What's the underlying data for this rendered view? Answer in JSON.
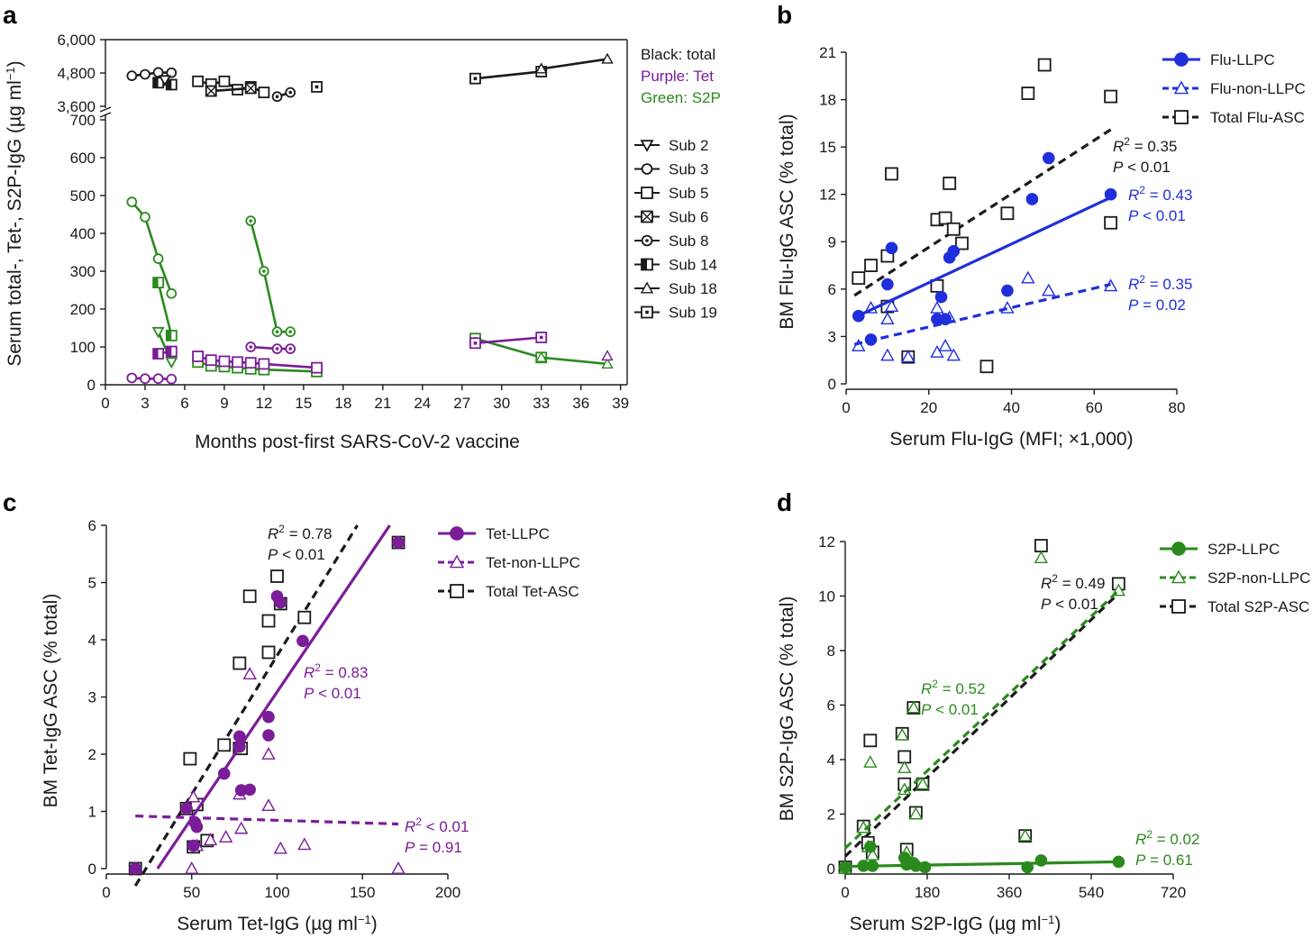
{
  "chart_data": [
    {
      "panel": "a",
      "type": "line",
      "xlabel": "Months post-first SARS-CoV-2 vaccine",
      "ylabel": "Serum total-, Tet-, S2P-IgG (µg ml",
      "ylabel_sup": "−1",
      "ylabel_tail": ")",
      "xlim": [
        0,
        39.5
      ],
      "xticks": [
        0,
        3,
        6,
        9,
        12,
        15,
        18,
        21,
        24,
        27,
        30,
        33,
        36,
        39
      ],
      "ylim_lower": [
        0,
        700
      ],
      "yticks_lower": [
        0,
        100,
        200,
        300,
        400,
        500,
        600,
        700
      ],
      "ylim_upper": [
        3600,
        6000
      ],
      "yticks_upper": [
        3600,
        4800,
        6000
      ],
      "ytick_labels_upper": [
        "3,600",
        "4,800",
        "6,000"
      ],
      "color_key": [
        {
          "text": "Black: total",
          "color": "#1a1a1a"
        },
        {
          "text": "Purple: Tet",
          "color": "#7b1c99"
        },
        {
          "text": "Green: S2P",
          "color": "#2b8a1e"
        }
      ],
      "subject_legend": [
        {
          "label": "Sub 2",
          "marker": "tri-down"
        },
        {
          "label": "Sub 3",
          "marker": "circle"
        },
        {
          "label": "Sub 5",
          "marker": "square"
        },
        {
          "label": "Sub 6",
          "marker": "square-x"
        },
        {
          "label": "Sub 8",
          "marker": "circle-dot"
        },
        {
          "label": "Sub 14",
          "marker": "square-half"
        },
        {
          "label": "Sub 18",
          "marker": "tri-up"
        },
        {
          "label": "Sub 19",
          "marker": "square-dot"
        }
      ],
      "series": [
        {
          "name": "Sub 3 total",
          "color": "total",
          "marker": "circle",
          "x": [
            2,
            3,
            4,
            5
          ],
          "y": [
            4700,
            4750,
            4820,
            4810
          ]
        },
        {
          "name": "Sub 14 total",
          "color": "total",
          "marker": "square-half",
          "x": [
            4,
            5
          ],
          "y": [
            4450,
            4380
          ]
        },
        {
          "name": "Sub 5 total",
          "color": "total",
          "marker": "square",
          "x": [
            7,
            8,
            9,
            10,
            11,
            12
          ],
          "y": [
            4500,
            4400,
            4500,
            4200,
            4300,
            4100
          ]
        },
        {
          "name": "Sub 6 total",
          "color": "total",
          "marker": "square-x",
          "x": [
            8,
            11
          ],
          "y": [
            4150,
            4250
          ]
        },
        {
          "name": "Sub 8 total",
          "color": "total",
          "marker": "circle-dot",
          "x": [
            13,
            14
          ],
          "y": [
            3950,
            4100
          ]
        },
        {
          "name": "Sub 2 total",
          "color": "total",
          "marker": "tri-down",
          "x": [
            4.5
          ],
          "y": [
            4550
          ]
        },
        {
          "name": "Sub 19 total (early)",
          "color": "total",
          "marker": "square-dot",
          "x": [
            16
          ],
          "y": [
            4300
          ]
        },
        {
          "name": "Sub 19 total (late)",
          "color": "total",
          "marker": "square-dot",
          "x": [
            28,
            33
          ],
          "y": [
            4600,
            4850
          ]
        },
        {
          "name": "Sub 18 total",
          "color": "total",
          "marker": "tri-up",
          "x": [
            33,
            38
          ],
          "y": [
            4950,
            5300
          ]
        },
        {
          "name": "Sub 3 S2P",
          "color": "s2p",
          "marker": "circle",
          "x": [
            2,
            3,
            4,
            5
          ],
          "y": [
            483,
            443,
            333,
            241
          ]
        },
        {
          "name": "Sub 14 S2P",
          "color": "s2p",
          "marker": "square-half",
          "x": [
            4,
            5
          ],
          "y": [
            270,
            130
          ]
        },
        {
          "name": "Sub 2 S2P",
          "color": "s2p",
          "marker": "tri-down",
          "x": [
            4,
            5
          ],
          "y": [
            140,
            60
          ]
        },
        {
          "name": "Sub 5 S2P",
          "color": "s2p",
          "marker": "square",
          "x": [
            7,
            8,
            9,
            10,
            11,
            12,
            16
          ],
          "y": [
            60,
            50,
            48,
            45,
            42,
            40,
            35
          ]
        },
        {
          "name": "Sub 8 S2P",
          "color": "s2p",
          "marker": "circle-dot",
          "x": [
            11,
            12,
            13,
            14
          ],
          "y": [
            433,
            300,
            140,
            140
          ]
        },
        {
          "name": "Sub 19 S2P",
          "color": "s2p",
          "marker": "square-dot",
          "x": [
            28,
            33
          ],
          "y": [
            122,
            72
          ]
        },
        {
          "name": "Sub 18 S2P",
          "color": "s2p",
          "marker": "tri-up",
          "x": [
            33,
            38
          ],
          "y": [
            72,
            55
          ]
        },
        {
          "name": "Sub 3 Tet",
          "color": "tet",
          "marker": "circle",
          "x": [
            2,
            3,
            4,
            5
          ],
          "y": [
            18,
            16,
            16,
            15
          ]
        },
        {
          "name": "Sub 14 Tet",
          "color": "tet",
          "marker": "square-half",
          "x": [
            4,
            5
          ],
          "y": [
            82,
            88
          ]
        },
        {
          "name": "Sub 5 Tet",
          "color": "tet",
          "marker": "square",
          "x": [
            7,
            8,
            9,
            10,
            11,
            12,
            16
          ],
          "y": [
            75,
            65,
            62,
            60,
            58,
            55,
            45
          ]
        },
        {
          "name": "Sub 8 Tet",
          "color": "tet",
          "marker": "circle-dot",
          "x": [
            11,
            13,
            14
          ],
          "y": [
            100,
            95,
            95
          ]
        },
        {
          "name": "Sub 19 Tet",
          "color": "tet",
          "marker": "square-dot",
          "x": [
            28,
            33
          ],
          "y": [
            110,
            125
          ]
        },
        {
          "name": "Sub 18 Tet",
          "color": "tet",
          "marker": "tri-up",
          "x": [
            38
          ],
          "y": [
            76
          ]
        }
      ]
    },
    {
      "panel": "b",
      "type": "scatter",
      "xlabel": "Serum Flu-IgG (MFI; ×1,000)",
      "ylabel": "BM Flu-IgG ASC (% total)",
      "xlim": [
        0,
        80
      ],
      "xticks": [
        0,
        20,
        40,
        60,
        80
      ],
      "ylim": [
        0,
        21
      ],
      "yticks": [
        0,
        3,
        6,
        9,
        12,
        15,
        18,
        21
      ],
      "color": "#1f2fdc",
      "legend": [
        {
          "label": "Flu-LLPC",
          "marker": "filled-circle",
          "line": "solid"
        },
        {
          "label": "Flu-non-LLPC",
          "marker": "open-triangle",
          "line": "dashed"
        },
        {
          "label": "Total Flu-ASC",
          "marker": "open-square",
          "line": "dashed-black"
        }
      ],
      "series": [
        {
          "name": "Flu-LLPC",
          "x": [
            3,
            10,
            11,
            6,
            23,
            24,
            25,
            26,
            22,
            39,
            45,
            49,
            64
          ],
          "y": [
            4.3,
            6.3,
            8.6,
            2.8,
            5.5,
            4.1,
            8.0,
            8.4,
            4.1,
            5.9,
            11.7,
            14.3,
            12.0
          ]
        },
        {
          "name": "Flu-non-LLPC",
          "x": [
            3,
            6,
            10,
            11,
            10,
            15,
            22,
            24,
            25,
            26,
            22,
            39,
            44,
            49,
            64
          ],
          "y": [
            2.4,
            4.8,
            1.8,
            4.9,
            4.1,
            1.7,
            2.0,
            2.4,
            4.2,
            1.8,
            4.8,
            4.8,
            6.7,
            5.9,
            6.2
          ]
        },
        {
          "name": "Total Flu-ASC",
          "x": [
            3,
            6,
            10,
            11,
            10,
            15,
            22,
            22,
            24,
            25,
            26,
            28,
            34,
            39,
            44,
            48,
            64,
            64
          ],
          "y": [
            6.7,
            7.5,
            8.1,
            13.3,
            4.9,
            1.7,
            6.2,
            10.4,
            10.5,
            12.7,
            9.8,
            8.9,
            1.1,
            10.8,
            18.4,
            20.2,
            18.2,
            10.2
          ]
        }
      ],
      "fits": [
        {
          "name": "Total Flu-ASC fit",
          "x": [
            2,
            64
          ],
          "y": [
            5.6,
            16.1
          ],
          "r2_text": "= 0.35",
          "p_text": "< 0.01"
        },
        {
          "name": "Flu-LLPC fit",
          "x": [
            2,
            64
          ],
          "y": [
            4.2,
            11.8
          ],
          "r2_text": "= 0.43",
          "p_text": "< 0.01"
        },
        {
          "name": "Flu-non-LLPC fit",
          "x": [
            2,
            64
          ],
          "y": [
            2.5,
            6.3
          ],
          "r2_text": "= 0.35",
          "p_text": "= 0.02"
        }
      ]
    },
    {
      "panel": "c",
      "type": "scatter",
      "xlabel": "Serum Tet-IgG (µg ml",
      "xlabel_sup": "−1",
      "xlabel_tail": ")",
      "ylabel": "BM Tet-IgG ASC (% total)",
      "xlim": [
        0,
        200
      ],
      "xticks": [
        0,
        50,
        100,
        150,
        200
      ],
      "ylim": [
        0,
        6
      ],
      "yticks": [
        0,
        1,
        2,
        3,
        4,
        5,
        6
      ],
      "color": "#7b1c99",
      "legend": [
        {
          "label": "Tet-LLPC",
          "marker": "filled-circle",
          "line": "solid"
        },
        {
          "label": "Tet-non-LLPC",
          "marker": "open-triangle",
          "line": "dashed"
        },
        {
          "label": "Total Tet-ASC",
          "marker": "open-square",
          "line": "dashed-black"
        }
      ],
      "series": [
        {
          "name": "Tet-LLPC",
          "x": [
            17,
            47,
            51,
            52,
            53,
            69,
            78,
            78,
            79,
            84,
            95,
            95,
            100,
            102,
            115,
            171
          ],
          "y": [
            0,
            1.05,
            0.4,
            0.8,
            0.73,
            1.66,
            2.13,
            2.31,
            1.37,
            1.38,
            2.65,
            2.33,
            4.76,
            4.65,
            3.98,
            5.7
          ]
        },
        {
          "name": "Tet-non-LLPC",
          "x": [
            17,
            50,
            51,
            53,
            61,
            70,
            78,
            79,
            84,
            95,
            95,
            102,
            116,
            171
          ],
          "y": [
            0,
            0,
            1.25,
            0.4,
            0.5,
            0.55,
            1.3,
            0.7,
            3.4,
            1.1,
            2.0,
            0.35,
            0.42,
            0
          ]
        },
        {
          "name": "Total Tet-ASC",
          "x": [
            17,
            47,
            49,
            51,
            53,
            59,
            69,
            78,
            78,
            79,
            84,
            95,
            95,
            100,
            102,
            116,
            171
          ],
          "y": [
            0,
            1.05,
            1.92,
            0.38,
            1.12,
            0.49,
            2.16,
            3.59,
            2.1,
            2.1,
            4.76,
            4.33,
            3.78,
            5.11,
            4.63,
            4.39,
            5.7
          ]
        }
      ],
      "fits": [
        {
          "name": "Total Tet-ASC fit",
          "x": [
            17,
            147
          ],
          "y": [
            -0.3,
            6.0
          ],
          "r2_text": "= 0.78",
          "p_text": "< 0.01"
        },
        {
          "name": "Tet-LLPC fit",
          "x": [
            30,
            166
          ],
          "y": [
            0,
            6.0
          ],
          "r2_text": "= 0.83",
          "p_text": "< 0.01"
        },
        {
          "name": "Tet-non-LLPC fit",
          "x": [
            17,
            171
          ],
          "y": [
            0.92,
            0.78
          ],
          "r2_text": "< 0.01",
          "p_text": "= 0.91"
        }
      ]
    },
    {
      "panel": "d",
      "type": "scatter",
      "xlabel": "Serum S2P-IgG (µg ml",
      "xlabel_sup": "−1",
      "xlabel_tail": ")",
      "ylabel": "BM S2P-IgG ASC (% total)",
      "xlim": [
        0,
        720
      ],
      "xticks": [
        0,
        180,
        360,
        540,
        720
      ],
      "ylim": [
        0,
        12
      ],
      "yticks": [
        0,
        2,
        4,
        6,
        8,
        10,
        12
      ],
      "color": "#2b8a1e",
      "legend": [
        {
          "label": "S2P-LLPC",
          "marker": "filled-circle",
          "line": "solid"
        },
        {
          "label": "S2P-non-LLPC",
          "marker": "open-triangle",
          "line": "dashed"
        },
        {
          "label": "Total S2P-ASC",
          "marker": "open-square",
          "line": "dashed-black"
        }
      ],
      "series": [
        {
          "name": "S2P-LLPC",
          "x": [
            0,
            40,
            55,
            60,
            130,
            135,
            140,
            150,
            155,
            175,
            400,
            430,
            600
          ],
          "y": [
            0.05,
            0.1,
            0.8,
            0.1,
            0.4,
            0.15,
            0.2,
            0.2,
            0.1,
            0.05,
            0.05,
            0.3,
            0.25
          ]
        },
        {
          "name": "S2P-non-LLPC",
          "x": [
            0,
            40,
            50,
            55,
            60,
            125,
            130,
            130,
            135,
            150,
            155,
            170,
            395,
            430,
            600
          ],
          "y": [
            0,
            1.5,
            0.8,
            3.9,
            0.5,
            4.9,
            3.7,
            2.9,
            0.6,
            5.9,
            2.0,
            3.1,
            1.2,
            11.4,
            10.2
          ]
        },
        {
          "name": "Total S2P-ASC",
          "x": [
            0,
            40,
            50,
            55,
            60,
            125,
            130,
            130,
            135,
            150,
            155,
            170,
            395,
            430,
            600
          ],
          "y": [
            0.05,
            1.55,
            0.95,
            4.7,
            0.6,
            4.95,
            4.1,
            3.1,
            0.7,
            5.9,
            2.05,
            3.1,
            1.2,
            11.85,
            10.45
          ]
        }
      ],
      "fits": [
        {
          "name": "Total S2P-ASC fit",
          "x": [
            0,
            600
          ],
          "y": [
            0.45,
            10.1
          ],
          "r2_text": "= 0.49",
          "p_text": "< 0.01"
        },
        {
          "name": "S2P-non-LLPC fit",
          "x": [
            0,
            600
          ],
          "y": [
            0.75,
            10.2
          ],
          "r2_text": "= 0.52",
          "p_text": "< 0.01"
        },
        {
          "name": "S2P-LLPC fit",
          "x": [
            0,
            600
          ],
          "y": [
            0.08,
            0.25
          ],
          "r2_text": "= 0.02",
          "p_text": "= 0.61"
        }
      ]
    }
  ],
  "labels": {
    "panel_a": "a",
    "panel_b": "b",
    "panel_c": "c",
    "panel_d": "d",
    "r2": "R",
    "r2_sup": "2",
    "p": "P"
  },
  "colors": {
    "total": "#1a1a1a",
    "tet": "#7b1c99",
    "s2p": "#2b8a1e",
    "flu": "#1f2fdc"
  }
}
